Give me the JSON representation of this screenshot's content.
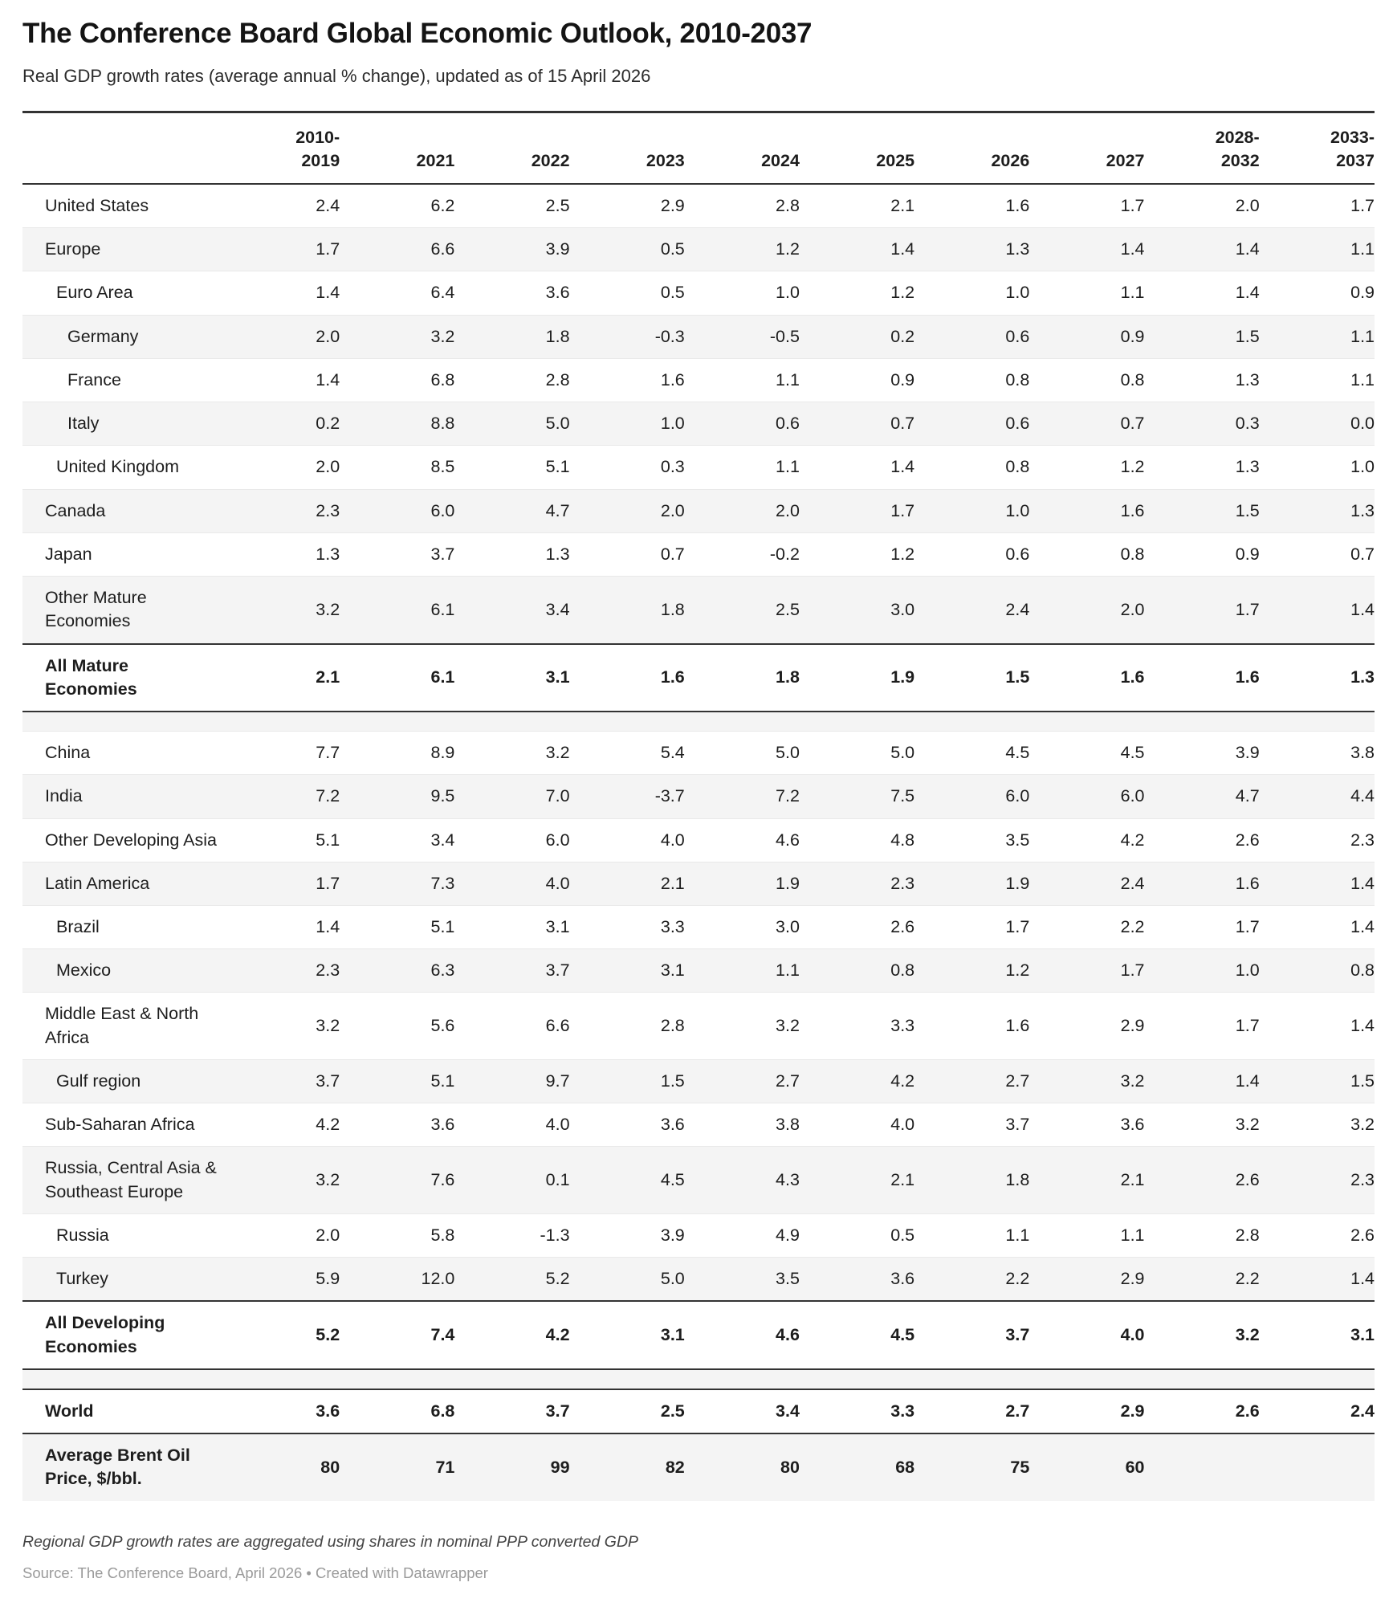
{
  "colors": {
    "rule": "#333333",
    "zebra_stripe": "#f4f4f4",
    "row_divider": "#e9e9e9",
    "text": "#1d1d1d",
    "note_text": "#444444",
    "source_text": "#9a9a9a"
  },
  "chart_data": {
    "type": "table",
    "title": "The Conference Board Global Economic Outlook, 2010-2037",
    "subtitle": "Real GDP growth rates (average annual % change), updated as of 15 April 2026",
    "columns": [
      "",
      "2010-\n2019",
      "2021",
      "2022",
      "2023",
      "2024",
      "2025",
      "2026",
      "2027",
      "2028-\n2032",
      "2033-\n2037"
    ],
    "rows": [
      {
        "label": "United States",
        "indent": 0,
        "bold": false,
        "strong": false,
        "values": [
          "2.4",
          "6.2",
          "2.5",
          "2.9",
          "2.8",
          "2.1",
          "1.6",
          "1.7",
          "2.0",
          "1.7"
        ]
      },
      {
        "label": "Europe",
        "indent": 0,
        "bold": false,
        "strong": false,
        "values": [
          "1.7",
          "6.6",
          "3.9",
          "0.5",
          "1.2",
          "1.4",
          "1.3",
          "1.4",
          "1.4",
          "1.1"
        ]
      },
      {
        "label": "Euro Area",
        "indent": 1,
        "bold": false,
        "strong": false,
        "values": [
          "1.4",
          "6.4",
          "3.6",
          "0.5",
          "1.0",
          "1.2",
          "1.0",
          "1.1",
          "1.4",
          "0.9"
        ]
      },
      {
        "label": "Germany",
        "indent": 2,
        "bold": false,
        "strong": false,
        "values": [
          "2.0",
          "3.2",
          "1.8",
          "-0.3",
          "-0.5",
          "0.2",
          "0.6",
          "0.9",
          "1.5",
          "1.1"
        ]
      },
      {
        "label": "France",
        "indent": 2,
        "bold": false,
        "strong": false,
        "values": [
          "1.4",
          "6.8",
          "2.8",
          "1.6",
          "1.1",
          "0.9",
          "0.8",
          "0.8",
          "1.3",
          "1.1"
        ]
      },
      {
        "label": "Italy",
        "indent": 2,
        "bold": false,
        "strong": false,
        "values": [
          "0.2",
          "8.8",
          "5.0",
          "1.0",
          "0.6",
          "0.7",
          "0.6",
          "0.7",
          "0.3",
          "0.0"
        ]
      },
      {
        "label": "United Kingdom",
        "indent": 1,
        "bold": false,
        "strong": false,
        "values": [
          "2.0",
          "8.5",
          "5.1",
          "0.3",
          "1.1",
          "1.4",
          "0.8",
          "1.2",
          "1.3",
          "1.0"
        ]
      },
      {
        "label": "Canada",
        "indent": 0,
        "bold": false,
        "strong": false,
        "values": [
          "2.3",
          "6.0",
          "4.7",
          "2.0",
          "2.0",
          "1.7",
          "1.0",
          "1.6",
          "1.5",
          "1.3"
        ]
      },
      {
        "label": "Japan",
        "indent": 0,
        "bold": false,
        "strong": false,
        "values": [
          "1.3",
          "3.7",
          "1.3",
          "0.7",
          "-0.2",
          "1.2",
          "0.6",
          "0.8",
          "0.9",
          "0.7"
        ]
      },
      {
        "label": "Other Mature\nEconomies",
        "indent": 0,
        "bold": false,
        "strong": false,
        "values": [
          "3.2",
          "6.1",
          "3.4",
          "1.8",
          "2.5",
          "3.0",
          "2.4",
          "2.0",
          "1.7",
          "1.4"
        ]
      },
      {
        "label": "All Mature Economies",
        "indent": 0,
        "bold": true,
        "strong": true,
        "values": [
          "2.1",
          "6.1",
          "3.1",
          "1.6",
          "1.8",
          "1.9",
          "1.5",
          "1.6",
          "1.6",
          "1.3"
        ]
      },
      {
        "type": "spacer"
      },
      {
        "label": "China",
        "indent": 0,
        "bold": false,
        "strong": false,
        "values": [
          "7.7",
          "8.9",
          "3.2",
          "5.4",
          "5.0",
          "5.0",
          "4.5",
          "4.5",
          "3.9",
          "3.8"
        ]
      },
      {
        "label": "India",
        "indent": 0,
        "bold": false,
        "strong": false,
        "values": [
          "7.2",
          "9.5",
          "7.0",
          "-3.7",
          "7.2",
          "7.5",
          "6.0",
          "6.0",
          "4.7",
          "4.4"
        ]
      },
      {
        "label": "Other Developing Asia",
        "indent": 0,
        "bold": false,
        "strong": false,
        "values": [
          "5.1",
          "3.4",
          "6.0",
          "4.0",
          "4.6",
          "4.8",
          "3.5",
          "4.2",
          "2.6",
          "2.3"
        ]
      },
      {
        "label": "Latin America",
        "indent": 0,
        "bold": false,
        "strong": false,
        "values": [
          "1.7",
          "7.3",
          "4.0",
          "2.1",
          "1.9",
          "2.3",
          "1.9",
          "2.4",
          "1.6",
          "1.4"
        ]
      },
      {
        "label": "Brazil",
        "indent": 1,
        "bold": false,
        "strong": false,
        "values": [
          "1.4",
          "5.1",
          "3.1",
          "3.3",
          "3.0",
          "2.6",
          "1.7",
          "2.2",
          "1.7",
          "1.4"
        ]
      },
      {
        "label": "Mexico",
        "indent": 1,
        "bold": false,
        "strong": false,
        "values": [
          "2.3",
          "6.3",
          "3.7",
          "3.1",
          "1.1",
          "0.8",
          "1.2",
          "1.7",
          "1.0",
          "0.8"
        ]
      },
      {
        "label": "Middle East & North\nAfrica",
        "indent": 0,
        "bold": false,
        "strong": false,
        "values": [
          "3.2",
          "5.6",
          "6.6",
          "2.8",
          "3.2",
          "3.3",
          "1.6",
          "2.9",
          "1.7",
          "1.4"
        ]
      },
      {
        "label": "Gulf region",
        "indent": 1,
        "bold": false,
        "strong": false,
        "values": [
          "3.7",
          "5.1",
          "9.7",
          "1.5",
          "2.7",
          "4.2",
          "2.7",
          "3.2",
          "1.4",
          "1.5"
        ]
      },
      {
        "label": "Sub-Saharan Africa",
        "indent": 0,
        "bold": false,
        "strong": false,
        "values": [
          "4.2",
          "3.6",
          "4.0",
          "3.6",
          "3.8",
          "4.0",
          "3.7",
          "3.6",
          "3.2",
          "3.2"
        ]
      },
      {
        "label": "Russia, Central Asia &\nSoutheast Europe",
        "indent": 0,
        "bold": false,
        "strong": false,
        "values": [
          "3.2",
          "7.6",
          "0.1",
          "4.5",
          "4.3",
          "2.1",
          "1.8",
          "2.1",
          "2.6",
          "2.3"
        ]
      },
      {
        "label": "Russia",
        "indent": 1,
        "bold": false,
        "strong": false,
        "values": [
          "2.0",
          "5.8",
          "-1.3",
          "3.9",
          "4.9",
          "0.5",
          "1.1",
          "1.1",
          "2.8",
          "2.6"
        ]
      },
      {
        "label": "Turkey",
        "indent": 1,
        "bold": false,
        "strong": false,
        "values": [
          "5.9",
          "12.0",
          "5.2",
          "5.0",
          "3.5",
          "3.6",
          "2.2",
          "2.9",
          "2.2",
          "1.4"
        ]
      },
      {
        "label": "All Developing\nEconomies",
        "indent": 0,
        "bold": true,
        "strong": true,
        "values": [
          "5.2",
          "7.4",
          "4.2",
          "3.1",
          "4.6",
          "4.5",
          "3.7",
          "4.0",
          "3.2",
          "3.1"
        ]
      },
      {
        "type": "spacer"
      },
      {
        "label": "World",
        "indent": 0,
        "bold": true,
        "strong": true,
        "values": [
          "3.6",
          "6.8",
          "3.7",
          "2.5",
          "3.4",
          "3.3",
          "2.7",
          "2.9",
          "2.6",
          "2.4"
        ]
      },
      {
        "label": "Average Brent Oil\nPrice, $/bbl.",
        "indent": 0,
        "bold": true,
        "strong": false,
        "values": [
          "80",
          "71",
          "99",
          "82",
          "80",
          "68",
          "75",
          "60",
          "",
          ""
        ]
      }
    ],
    "note": "Regional GDP growth rates are aggregated using shares in nominal PPP converted GDP",
    "source": "Source: The Conference Board, April 2026 • Created with Datawrapper"
  }
}
